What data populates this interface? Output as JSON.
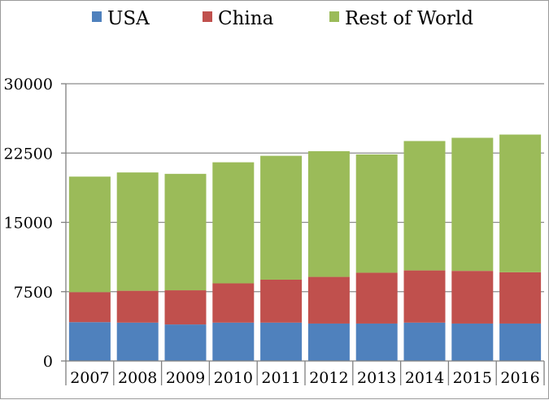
{
  "chart_data": {
    "type": "bar",
    "stacked": true,
    "title": "",
    "xlabel": "",
    "ylabel": "",
    "categories": [
      "2007",
      "2008",
      "2009",
      "2010",
      "2011",
      "2012",
      "2013",
      "2014",
      "2015",
      "2016"
    ],
    "series": [
      {
        "name": "USA",
        "color": "#4f81bd",
        "values": [
          4200,
          4150,
          3950,
          4150,
          4150,
          4050,
          4050,
          4150,
          4050,
          4050
        ]
      },
      {
        "name": "China",
        "color": "#c0504d",
        "values": [
          3250,
          3450,
          3700,
          4250,
          4650,
          5050,
          5500,
          5650,
          5700,
          5550
        ]
      },
      {
        "name": "Rest of World",
        "color": "#9bbb59",
        "values": [
          12500,
          12800,
          12600,
          13100,
          13400,
          13600,
          12800,
          14000,
          14400,
          14900
        ]
      }
    ],
    "ylim": [
      0,
      30000
    ],
    "yticks": [
      0,
      7500,
      15000,
      22500,
      30000
    ],
    "ytick_labels": [
      "0",
      "7500",
      "15000",
      "22500",
      "30000"
    ],
    "grid": "horizontal",
    "legend_position": "top"
  }
}
